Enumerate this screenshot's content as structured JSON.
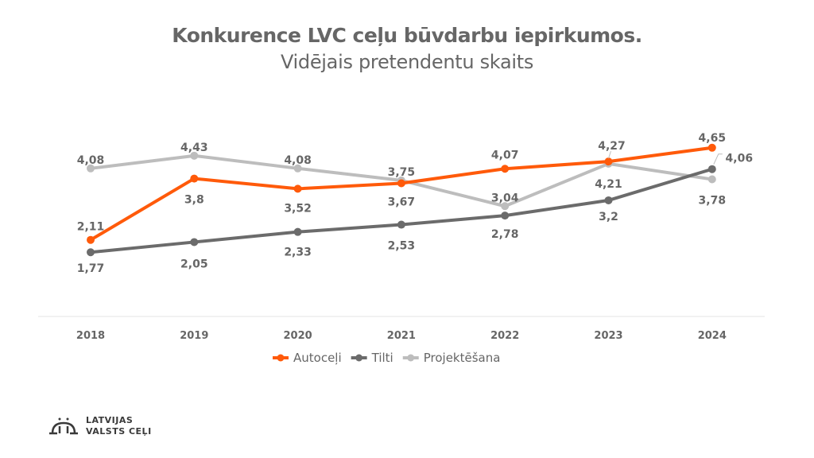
{
  "chart_data": {
    "type": "line",
    "title": "Konkurence LVC ceļu būvdarbu iepirkumos.",
    "subtitle": "Vidējais pretendentu skaits",
    "xlabel": "",
    "ylabel": "",
    "categories": [
      "2018",
      "2019",
      "2020",
      "2021",
      "2022",
      "2023",
      "2024"
    ],
    "ylim": [
      0,
      5.5
    ],
    "grid": false,
    "legend": "bottom",
    "series": [
      {
        "name": "Autoceļi",
        "color": "#FF5A0A",
        "values": [
          2.11,
          3.8,
          3.52,
          3.67,
          4.07,
          4.27,
          4.65
        ],
        "labels": [
          "2,11",
          "3,8",
          "3,52",
          "3,67",
          "4,07",
          "4,27",
          "4,65"
        ]
      },
      {
        "name": "Tilti",
        "color": "#6B6B6B",
        "values": [
          1.77,
          2.05,
          2.33,
          2.53,
          2.78,
          3.2,
          4.06
        ],
        "labels": [
          "1,77",
          "2,05",
          "2,33",
          "2,53",
          "2,78",
          "3,2",
          "4,06"
        ]
      },
      {
        "name": "Projektēšana",
        "color": "#BDBDBD",
        "values": [
          4.08,
          4.43,
          4.08,
          3.75,
          3.04,
          4.21,
          3.78
        ],
        "labels": [
          "4,08",
          "4,43",
          "4,08",
          "3,75",
          "3,04",
          "4,21",
          "3,78"
        ]
      }
    ]
  },
  "logo": {
    "line1": "LATVIJAS",
    "line2": "VALSTS CEĻI"
  }
}
